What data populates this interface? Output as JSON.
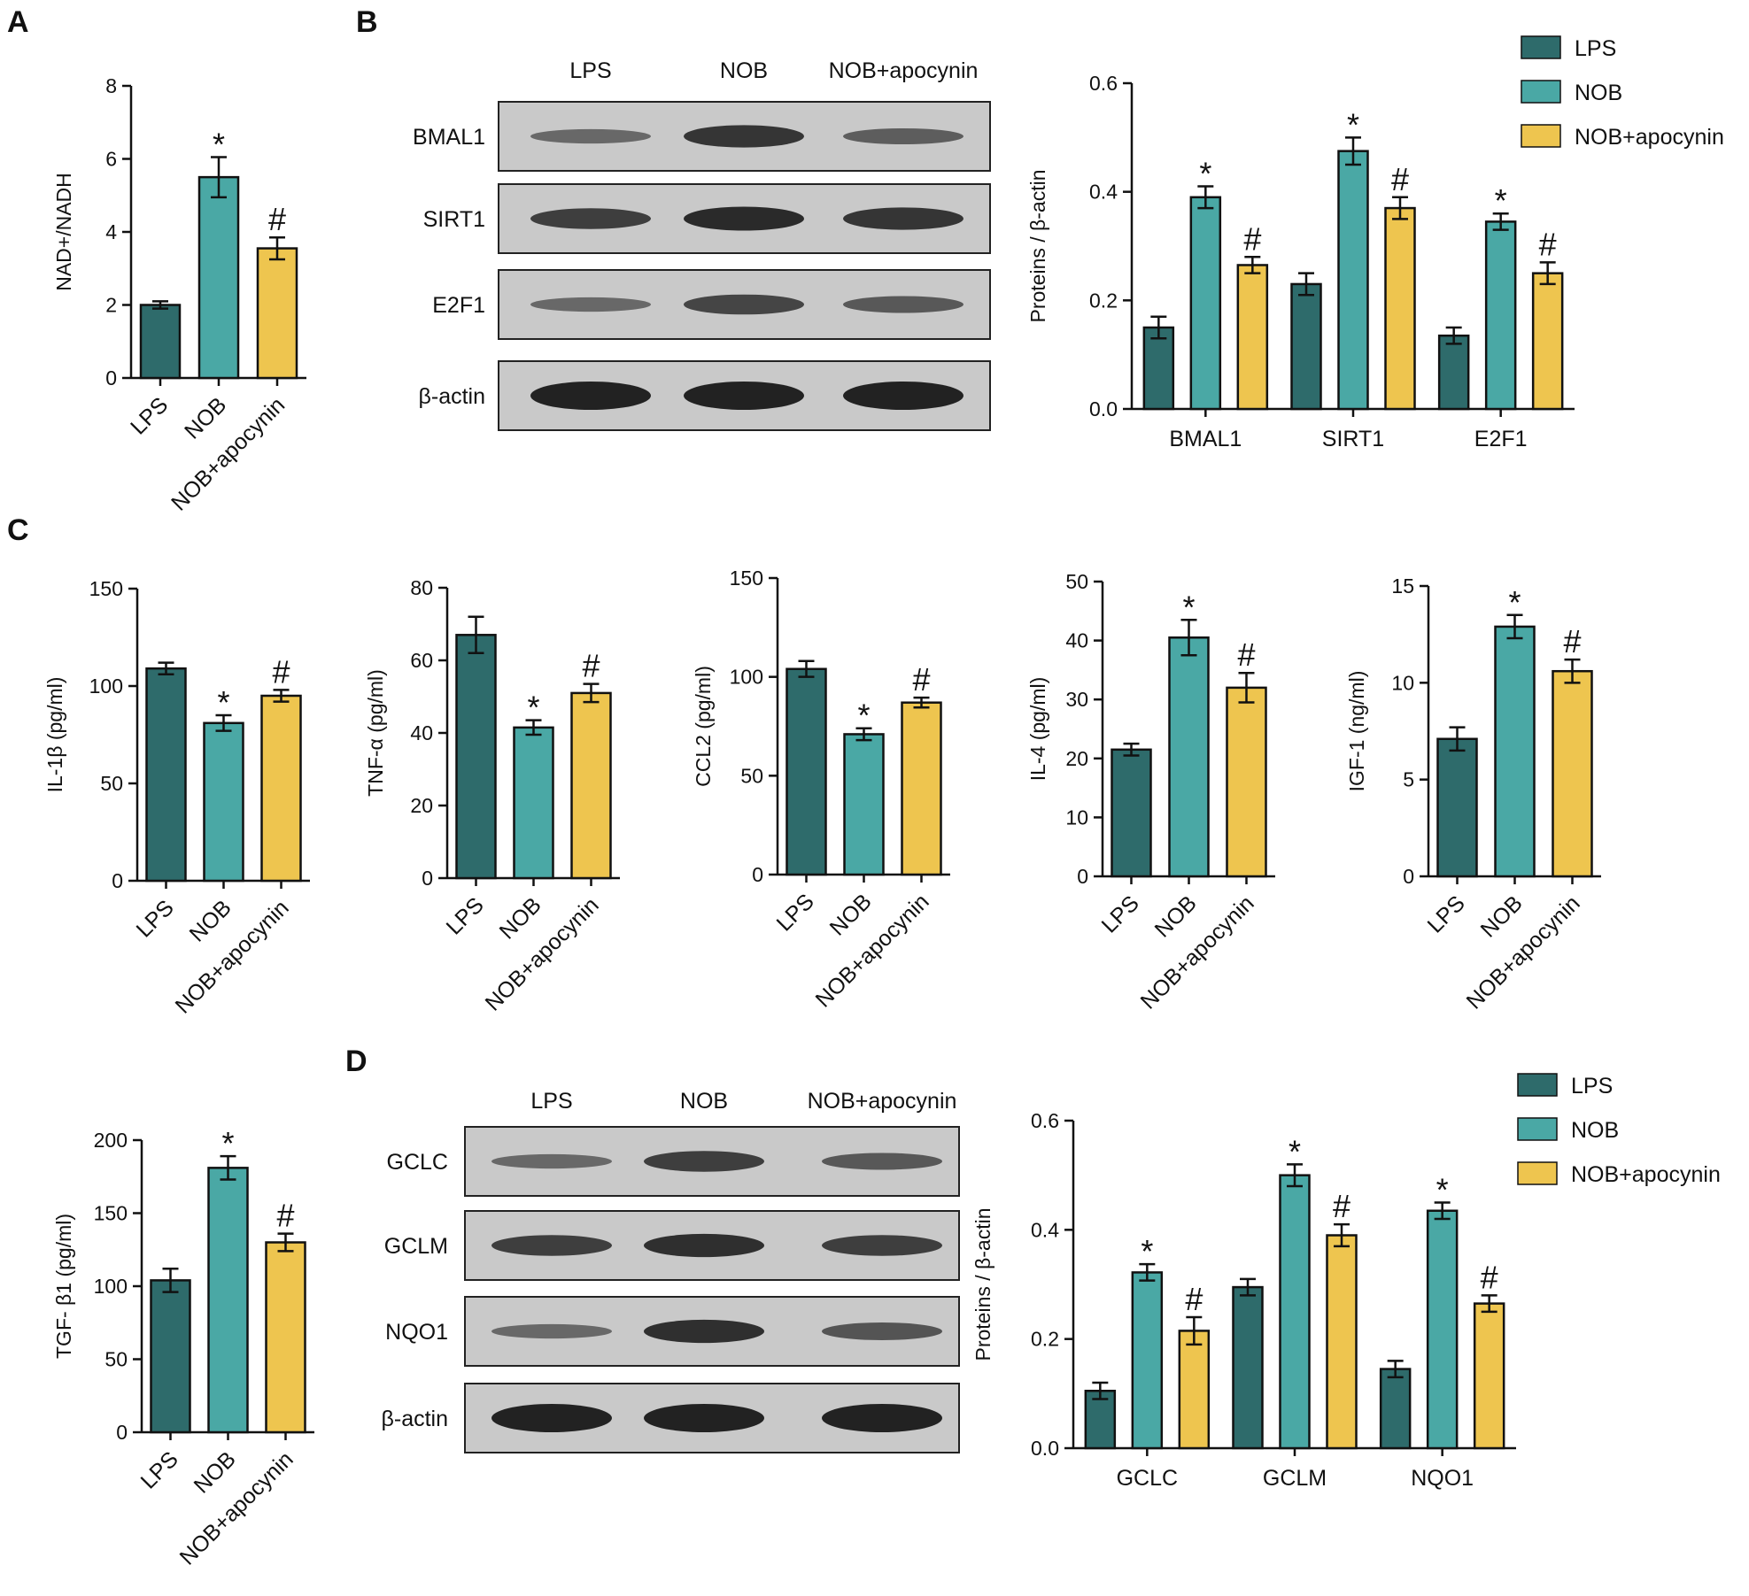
{
  "panel_labels": [
    "A",
    "B",
    "C",
    "D"
  ],
  "colors": {
    "LPS": "#2e6b6b",
    "NOB": "#4aa8a5",
    "NOB+apocynin": "#eec54f",
    "axis": "#111111",
    "blot_bg": "#c9c9c9",
    "band": "#1c1c1c"
  },
  "legend": {
    "entries": [
      "LPS",
      "NOB",
      "NOB+apocynin"
    ]
  },
  "blots": [
    {
      "id": "B",
      "lanes": [
        "LPS",
        "NOB",
        "NOB+apocynin"
      ],
      "rows": [
        {
          "label": "BMAL1",
          "intensity": [
            0.35,
            0.85,
            0.45
          ]
        },
        {
          "label": "SIRT1",
          "intensity": [
            0.75,
            0.95,
            0.85
          ]
        },
        {
          "label": "E2F1",
          "intensity": [
            0.35,
            0.7,
            0.5
          ]
        },
        {
          "label": "β-actin",
          "intensity": [
            1.0,
            1.0,
            1.0
          ]
        }
      ]
    },
    {
      "id": "D",
      "lanes": [
        "LPS",
        "NOB",
        "NOB+apocynin"
      ],
      "rows": [
        {
          "label": "GCLC",
          "intensity": [
            0.35,
            0.75,
            0.5
          ]
        },
        {
          "label": "GCLM",
          "intensity": [
            0.75,
            0.9,
            0.75
          ]
        },
        {
          "label": "NQO1",
          "intensity": [
            0.35,
            0.9,
            0.55
          ]
        },
        {
          "label": "β-actin",
          "intensity": [
            1.0,
            1.0,
            1.0
          ]
        }
      ]
    }
  ],
  "chart_data": [
    {
      "id": "A-nad",
      "type": "bar",
      "panel": "A",
      "categories": [
        "LPS",
        "NOB",
        "NOB+apocynin"
      ],
      "values": [
        2.0,
        5.5,
        3.55
      ],
      "errors": [
        0.1,
        0.55,
        0.3
      ],
      "significance": [
        "",
        "*",
        "#"
      ],
      "ylabel": "NAD+/NADH",
      "ylim": [
        0,
        8
      ],
      "yticks": [
        0,
        2,
        4,
        6,
        8
      ],
      "title": "",
      "xlabel": ""
    },
    {
      "id": "B-quant",
      "type": "bar",
      "panel": "B",
      "categories": [
        "BMAL1",
        "SIRT1",
        "E2F1"
      ],
      "series": [
        {
          "name": "LPS",
          "values": [
            0.15,
            0.23,
            0.135
          ],
          "errors": [
            0.02,
            0.02,
            0.015
          ],
          "significance": [
            "",
            "",
            ""
          ]
        },
        {
          "name": "NOB",
          "values": [
            0.39,
            0.475,
            0.345
          ],
          "errors": [
            0.02,
            0.025,
            0.015
          ],
          "significance": [
            "*",
            "*",
            "*"
          ]
        },
        {
          "name": "NOB+apocynin",
          "values": [
            0.265,
            0.37,
            0.25
          ],
          "errors": [
            0.015,
            0.02,
            0.02
          ],
          "significance": [
            "#",
            "#",
            "#"
          ]
        }
      ],
      "ylabel": "Proteins / β-actin",
      "ylim": [
        0,
        0.6
      ],
      "yticks": [
        "0.0",
        "0.2",
        "0.4",
        "0.6"
      ],
      "legend_position": "top-right",
      "title": "",
      "xlabel": ""
    },
    {
      "id": "C-il1b",
      "type": "bar",
      "panel": "C",
      "categories": [
        "LPS",
        "NOB",
        "NOB+apocynin"
      ],
      "values": [
        109,
        81,
        95
      ],
      "errors": [
        3,
        4,
        3
      ],
      "significance": [
        "",
        "*",
        "#"
      ],
      "ylabel": "IL-1β (pg/ml)",
      "ylim": [
        0,
        150
      ],
      "yticks": [
        0,
        50,
        100,
        150
      ],
      "title": "",
      "xlabel": ""
    },
    {
      "id": "C-tnfa",
      "type": "bar",
      "panel": "C",
      "categories": [
        "LPS",
        "NOB",
        "NOB+apocynin"
      ],
      "values": [
        67,
        41.5,
        51
      ],
      "errors": [
        5,
        2,
        2.5
      ],
      "significance": [
        "",
        "*",
        "#"
      ],
      "ylabel": "TNF-α (pg/ml)",
      "ylim": [
        0,
        80
      ],
      "yticks": [
        0,
        20,
        40,
        60,
        80
      ],
      "title": "",
      "xlabel": ""
    },
    {
      "id": "C-ccl2",
      "type": "bar",
      "panel": "C",
      "categories": [
        "LPS",
        "NOB",
        "NOB+apocynin"
      ],
      "values": [
        104,
        71,
        87
      ],
      "errors": [
        4,
        3,
        2.5
      ],
      "significance": [
        "",
        "*",
        "#"
      ],
      "ylabel": "CCL2 (pg/ml)",
      "ylim": [
        0,
        150
      ],
      "yticks": [
        0,
        50,
        100,
        150
      ],
      "title": "",
      "xlabel": ""
    },
    {
      "id": "C-il4",
      "type": "bar",
      "panel": "C",
      "categories": [
        "LPS",
        "NOB",
        "NOB+apocynin"
      ],
      "values": [
        21.5,
        40.5,
        32
      ],
      "errors": [
        1,
        3,
        2.5
      ],
      "significance": [
        "",
        "*",
        "#"
      ],
      "ylabel": "IL-4 (pg/ml)",
      "ylim": [
        0,
        50
      ],
      "yticks": [
        0,
        10,
        20,
        30,
        40,
        50
      ],
      "title": "",
      "xlabel": ""
    },
    {
      "id": "C-igf1",
      "type": "bar",
      "panel": "C",
      "categories": [
        "LPS",
        "NOB",
        "NOB+apocynin"
      ],
      "values": [
        7.1,
        12.9,
        10.6
      ],
      "errors": [
        0.6,
        0.6,
        0.6
      ],
      "significance": [
        "",
        "*",
        "#"
      ],
      "ylabel": "IGF-1 (ng/ml)",
      "ylim": [
        0,
        15
      ],
      "yticks": [
        0,
        5,
        10,
        15
      ],
      "title": "",
      "xlabel": ""
    },
    {
      "id": "C-tgfb1",
      "type": "bar",
      "panel": "C",
      "categories": [
        "LPS",
        "NOB",
        "NOB+apocynin"
      ],
      "values": [
        104,
        181,
        130
      ],
      "errors": [
        8,
        8,
        6
      ],
      "significance": [
        "",
        "*",
        "#"
      ],
      "ylabel": "TGF- β1 (pg/ml)",
      "ylim": [
        0,
        200
      ],
      "yticks": [
        0,
        50,
        100,
        150,
        200
      ],
      "title": "",
      "xlabel": ""
    },
    {
      "id": "D-quant",
      "type": "bar",
      "panel": "D",
      "categories": [
        "GCLC",
        "GCLM",
        "NQO1"
      ],
      "series": [
        {
          "name": "LPS",
          "values": [
            0.105,
            0.295,
            0.145
          ],
          "errors": [
            0.015,
            0.015,
            0.015
          ],
          "significance": [
            "",
            "",
            ""
          ]
        },
        {
          "name": "NOB",
          "values": [
            0.322,
            0.5,
            0.435
          ],
          "errors": [
            0.015,
            0.02,
            0.015
          ],
          "significance": [
            "*",
            "*",
            "*"
          ]
        },
        {
          "name": "NOB+apocynin",
          "values": [
            0.215,
            0.39,
            0.265
          ],
          "errors": [
            0.025,
            0.02,
            0.015
          ],
          "significance": [
            "#",
            "#",
            "#"
          ]
        }
      ],
      "ylabel": "Proteins / β-actin",
      "ylim": [
        0,
        0.6
      ],
      "yticks": [
        "0.0",
        "0.2",
        "0.4",
        "0.6"
      ],
      "legend_position": "top-right",
      "title": "",
      "xlabel": ""
    }
  ]
}
